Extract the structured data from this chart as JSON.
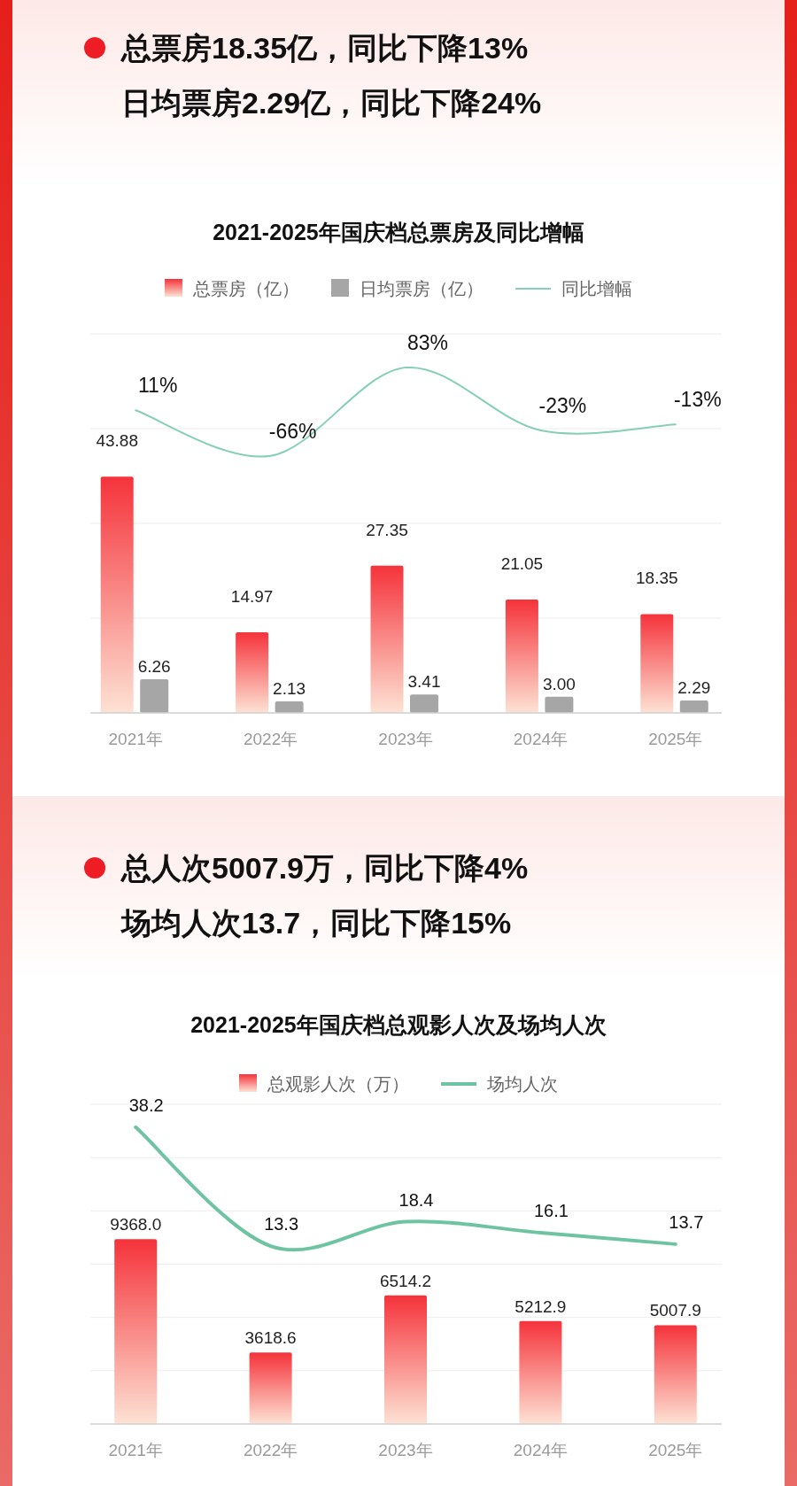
{
  "chart_data": [
    {
      "type": "bar",
      "title": "2021-2025年国庆档总票房及同比增幅",
      "annotations": [
        "总票房18.35亿，同比下降13%",
        "日均票房2.29亿，同比下降24%"
      ],
      "categories": [
        "2021年",
        "2022年",
        "2023年",
        "2024年",
        "2025年"
      ],
      "legend": "top",
      "grid": "y",
      "tick_labels": "x",
      "ylim": [
        0,
        70.4
      ],
      "yticks": [
        {
          "value": 0,
          "label": null
        },
        {
          "value": 17.6,
          "label": null
        },
        {
          "value": 35.2,
          "label": null
        },
        {
          "value": 52.8,
          "label": null
        },
        {
          "value": 70.4,
          "label": null
        }
      ],
      "y2lim": [
        -500,
        140
      ],
      "series": [
        {
          "name": "总票房（亿）",
          "color": "#f5333b",
          "values": [
            43.88,
            14.97,
            27.35,
            21.05,
            18.35
          ],
          "value_labels": [
            "43.88",
            "14.97",
            "27.35",
            "21.05",
            "18.35"
          ]
        },
        {
          "name": "日均票房（亿）",
          "color": "#a6a6a6",
          "values": [
            6.26,
            2.13,
            3.41,
            3.0,
            2.29
          ],
          "value_labels": [
            "6.26",
            "2.13",
            "3.41",
            "3.00",
            "2.29"
          ]
        },
        {
          "name": "同比增幅",
          "type": "line",
          "axis": "y2",
          "color": "#85cfb6",
          "values": [
            11,
            -66,
            83,
            -23,
            -13
          ],
          "value_labels": [
            "11%",
            "-66%",
            "83%",
            "-23%",
            "-13%"
          ]
        }
      ]
    },
    {
      "type": "bar",
      "title": "2021-2025年国庆档总观影人次及场均人次",
      "annotations": [
        "总人次5007.9万，同比下降4%",
        "场均人次13.7，同比下降15%"
      ],
      "categories": [
        "2021年",
        "2022年",
        "2023年",
        "2024年",
        "2025年"
      ],
      "legend": "top",
      "grid": "y",
      "tick_labels": "x",
      "ylim": [
        0,
        16200
      ],
      "yticks": [
        {
          "value": 0,
          "label": null
        },
        {
          "value": 2700,
          "label": null
        },
        {
          "value": 5400,
          "label": null
        },
        {
          "value": 8100,
          "label": null
        },
        {
          "value": 10800,
          "label": null
        },
        {
          "value": 13500,
          "label": null
        },
        {
          "value": 16200,
          "label": null
        }
      ],
      "y2lim": [
        -24,
        43
      ],
      "series": [
        {
          "name": "总观影人次（万）",
          "color": "#f5333b",
          "values": [
            9368.0,
            3618.6,
            6514.2,
            5212.9,
            5007.9
          ],
          "value_labels": [
            "9368.0",
            "3618.6",
            "6514.2",
            "5212.9",
            "5007.9"
          ]
        },
        {
          "name": "场均人次",
          "type": "line",
          "axis": "y2",
          "color": "#6ec4a2",
          "values": [
            38.2,
            13.3,
            18.4,
            16.1,
            13.7
          ],
          "value_labels": [
            "38.2",
            "13.3",
            "18.4",
            "16.1",
            "13.7"
          ]
        }
      ]
    }
  ]
}
